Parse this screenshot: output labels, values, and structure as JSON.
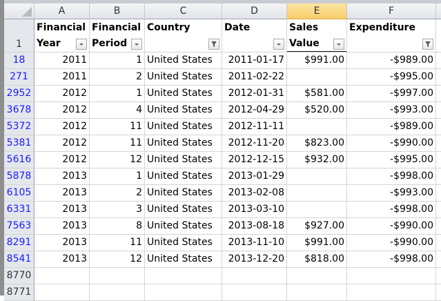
{
  "columns": [
    "A",
    "B",
    "C",
    "D",
    "E",
    "F"
  ],
  "selected_column": "E",
  "header_row": {
    "row_number": "1",
    "headers": [
      {
        "label": "Financial Year",
        "filter": "dropdown"
      },
      {
        "label": "Financial Period",
        "filter": "dropdown"
      },
      {
        "label": "Country",
        "filter": "filtered"
      },
      {
        "label": "Date",
        "filter": "dropdown"
      },
      {
        "label": "Sales Value",
        "filter": "dropdown"
      },
      {
        "label": "Expenditure",
        "filter": "filtered"
      }
    ]
  },
  "rows": [
    {
      "row": "18",
      "year": "2011",
      "period": "1",
      "country": "United States",
      "date": "2011-01-17",
      "sales": "$991.00",
      "exp": "-$989.00"
    },
    {
      "row": "271",
      "year": "2011",
      "period": "2",
      "country": "United States",
      "date": "2011-02-22",
      "sales": "",
      "exp": "-$995.00"
    },
    {
      "row": "2952",
      "year": "2012",
      "period": "1",
      "country": "United States",
      "date": "2012-01-31",
      "sales": "$581.00",
      "exp": "-$997.00"
    },
    {
      "row": "3678",
      "year": "2012",
      "period": "4",
      "country": "United States",
      "date": "2012-04-29",
      "sales": "$520.00",
      "exp": "-$993.00"
    },
    {
      "row": "5372",
      "year": "2012",
      "period": "11",
      "country": "United States",
      "date": "2012-11-11",
      "sales": "",
      "exp": "-$989.00"
    },
    {
      "row": "5381",
      "year": "2012",
      "period": "11",
      "country": "United States",
      "date": "2012-11-20",
      "sales": "$823.00",
      "exp": "-$990.00"
    },
    {
      "row": "5616",
      "year": "2012",
      "period": "12",
      "country": "United States",
      "date": "2012-12-15",
      "sales": "$932.00",
      "exp": "-$995.00"
    },
    {
      "row": "5878",
      "year": "2013",
      "period": "1",
      "country": "United States",
      "date": "2013-01-29",
      "sales": "",
      "exp": "-$998.00"
    },
    {
      "row": "6105",
      "year": "2013",
      "period": "2",
      "country": "United States",
      "date": "2013-02-08",
      "sales": "",
      "exp": "-$993.00"
    },
    {
      "row": "6331",
      "year": "2013",
      "period": "3",
      "country": "United States",
      "date": "2013-03-10",
      "sales": "",
      "exp": "-$998.00"
    },
    {
      "row": "7563",
      "year": "2013",
      "period": "8",
      "country": "United States",
      "date": "2013-08-18",
      "sales": "$927.00",
      "exp": "-$990.00"
    },
    {
      "row": "8291",
      "year": "2013",
      "period": "11",
      "country": "United States",
      "date": "2013-11-10",
      "sales": "$991.00",
      "exp": "-$990.00"
    },
    {
      "row": "8541",
      "year": "2013",
      "period": "12",
      "country": "United States",
      "date": "2013-12-20",
      "sales": "$818.00",
      "exp": "-$998.00"
    }
  ],
  "empty_rows": [
    "8770",
    "8771"
  ]
}
